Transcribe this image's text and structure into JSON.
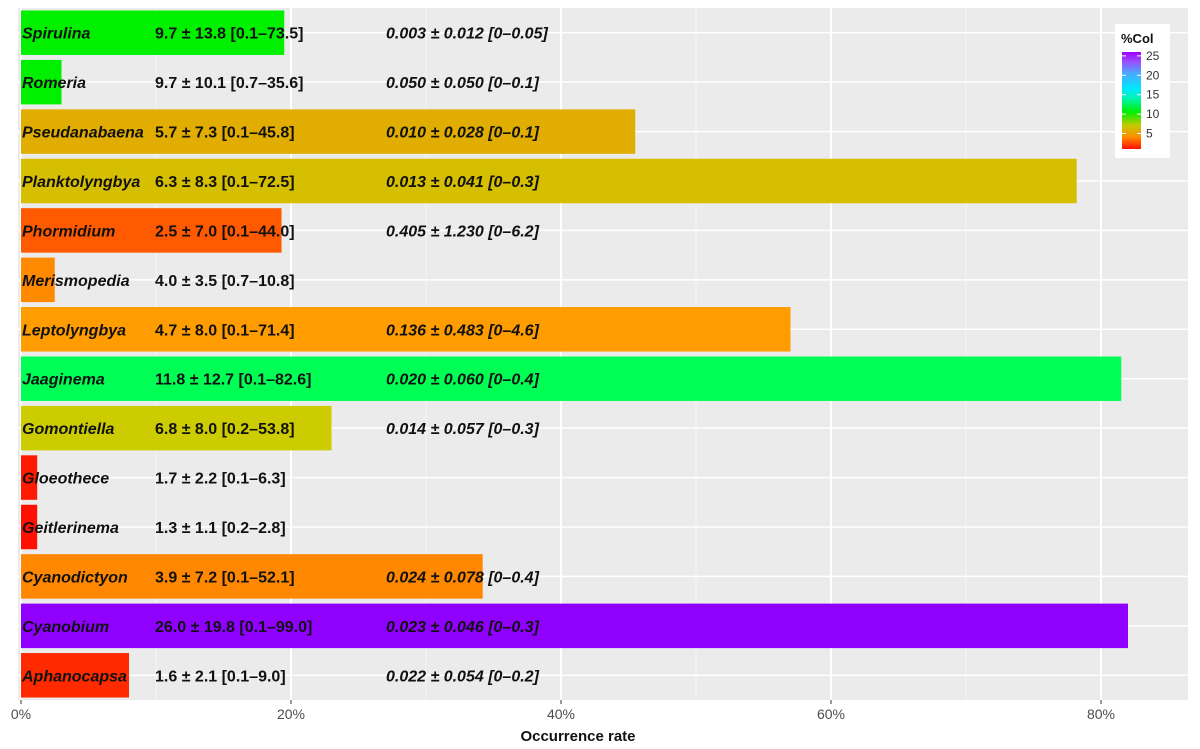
{
  "chart_data": {
    "type": "bar",
    "orientation": "horizontal",
    "xlabel": "Occurrence rate",
    "xlim": [
      0,
      86
    ],
    "xticks": [
      0,
      20,
      40,
      60,
      80
    ],
    "xtick_labels": [
      "0%",
      "20%",
      "40%",
      "60%",
      "80%"
    ],
    "legend": {
      "title": "%Col",
      "ticks": [
        5,
        10,
        15,
        20,
        25
      ],
      "range": [
        1,
        26
      ],
      "placement": "top-right"
    },
    "bars": [
      {
        "genus": "Spirulina",
        "occurrence": 19.5,
        "col": 9.7,
        "stat1": "9.7 ± 13.8 [0.1–73.5]",
        "stat2": "0.003 ± 0.012 [0–0.05]",
        "color": "#00f000"
      },
      {
        "genus": "Romeria",
        "occurrence": 3.0,
        "col": 9.7,
        "stat1": "9.7 ± 10.1 [0.7–35.6]",
        "stat2": "0.050 ± 0.050 [0–0.1]",
        "color": "#00f000"
      },
      {
        "genus": "Pseudanabaena",
        "occurrence": 45.5,
        "col": 5.7,
        "stat1": "5.7 ± 7.3 [0.1–45.8]",
        "stat2": "0.010 ± 0.028 [0–0.1]",
        "color": "#e0ad00"
      },
      {
        "genus": "Planktolyngbya",
        "occurrence": 78.2,
        "col": 6.3,
        "stat1": "6.3 ± 8.3 [0.1–72.5]",
        "stat2": "0.013 ± 0.041 [0–0.3]",
        "color": "#d6be00"
      },
      {
        "genus": "Phormidium",
        "occurrence": 19.3,
        "col": 2.5,
        "stat1": "2.5 ± 7.0 [0.1–44.0]",
        "stat2": "0.405 ± 1.230 [0–6.2]",
        "color": "#ff5a00"
      },
      {
        "genus": "Merismopedia",
        "occurrence": 2.5,
        "col": 4.0,
        "stat1": "4.0 ± 3.5 [0.7–10.8]",
        "stat2": "",
        "color": "#ff8a00"
      },
      {
        "genus": "Leptolyngbya",
        "occurrence": 57.0,
        "col": 4.7,
        "stat1": "4.7 ± 8.0 [0.1–71.4]",
        "stat2": "0.136 ± 0.483 [0–4.6]",
        "color": "#ff9c00"
      },
      {
        "genus": "Jaaginema",
        "occurrence": 81.5,
        "col": 11.8,
        "stat1": "11.8 ± 12.7 [0.1–82.6]",
        "stat2": "0.020 ± 0.060 [0–0.4]",
        "color": "#00ff55"
      },
      {
        "genus": "Gomontiella",
        "occurrence": 23.0,
        "col": 6.8,
        "stat1": "6.8 ± 8.0 [0.2–53.8]",
        "stat2": "0.014 ± 0.057 [0–0.3]",
        "color": "#cccc00"
      },
      {
        "genus": "Gloeothece",
        "occurrence": 1.2,
        "col": 1.7,
        "stat1": "1.7 ± 2.2 [0.1–6.3]",
        "stat2": "",
        "color": "#ff1a00"
      },
      {
        "genus": "Geitlerinema",
        "occurrence": 1.2,
        "col": 1.3,
        "stat1": "1.3 ± 1.1 [0.2–2.8]",
        "stat2": "",
        "color": "#ff1000"
      },
      {
        "genus": "Cyanodictyon",
        "occurrence": 34.2,
        "col": 3.9,
        "stat1": "3.9 ± 7.2 [0.1–52.1]",
        "stat2": "0.024 ± 0.078 [0–0.4]",
        "color": "#ff8800"
      },
      {
        "genus": "Cyanobium",
        "occurrence": 82.0,
        "col": 26.0,
        "stat1": "26.0 ± 19.8 [0.1–99.0]",
        "stat2": "0.023 ± 0.046 [0–0.3]",
        "color": "#9000ff"
      },
      {
        "genus": "Aphanocapsa",
        "occurrence": 8.0,
        "col": 1.6,
        "stat1": "1.6 ± 2.1 [0.1–9.0]",
        "stat2": "0.022 ± 0.054 [0–0.2]",
        "color": "#ff2a00"
      }
    ]
  }
}
